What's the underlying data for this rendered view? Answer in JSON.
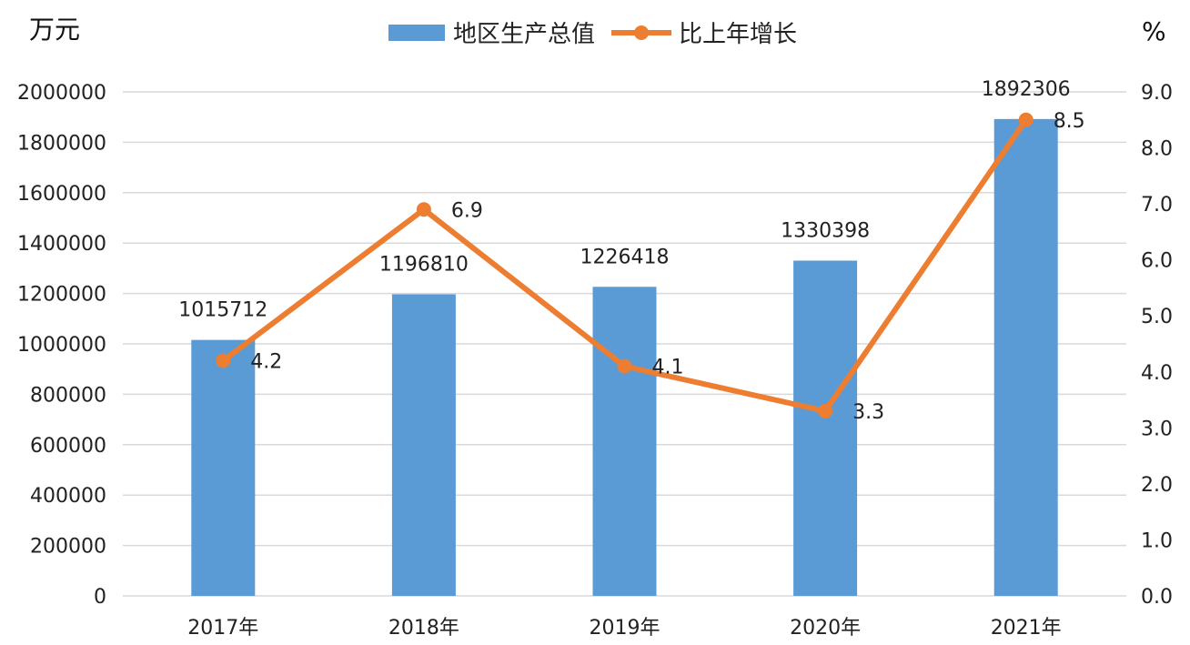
{
  "chart_data": {
    "type": "bar",
    "categories": [
      "2017年",
      "2018年",
      "2019年",
      "2020年",
      "2021年"
    ],
    "series": [
      {
        "name": "地区生产总值",
        "type": "bar",
        "axis": "left",
        "color": "#5b9bd5",
        "values": [
          1015712,
          1196810,
          1226418,
          1330398,
          1892306
        ],
        "labels": [
          "1015712",
          "1196810",
          "1226418",
          "1330398",
          "1892306"
        ]
      },
      {
        "name": "比上年增长",
        "type": "line",
        "axis": "right",
        "color": "#ed7d31",
        "values": [
          4.2,
          6.9,
          4.1,
          3.3,
          8.5
        ],
        "labels": [
          "4.2",
          "6.9",
          "4.1",
          "3.3",
          "8.5"
        ]
      }
    ],
    "y_left": {
      "unit": "万元",
      "range": [
        0,
        2000000
      ],
      "ticks": [
        "0",
        "200000",
        "400000",
        "600000",
        "800000",
        "1000000",
        "1200000",
        "1400000",
        "1600000",
        "1800000",
        "2000000"
      ]
    },
    "y_right": {
      "unit": "%",
      "range": [
        0,
        9
      ],
      "ticks": [
        "0.0",
        "1.0",
        "2.0",
        "3.0",
        "4.0",
        "5.0",
        "6.0",
        "7.0",
        "8.0",
        "9.0"
      ]
    },
    "grid": true,
    "legend": "top-center"
  }
}
